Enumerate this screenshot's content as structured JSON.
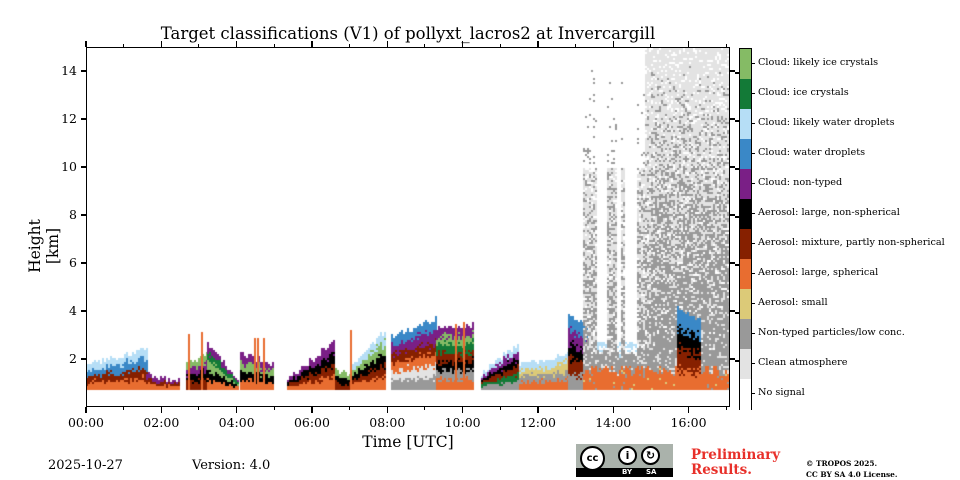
{
  "chart_data": {
    "type": "heatmap",
    "title": "Target classifications (V1) of pollyxt_lacros2 at Invercargill",
    "xlabel": "Time [UTC]",
    "ylabel": "Height [km]",
    "xlim_hours": [
      0,
      17.1
    ],
    "ylim_km": [
      0,
      15
    ],
    "xticks": [
      {
        "value": 0,
        "label": "00:00"
      },
      {
        "value": 2,
        "label": "02:00"
      },
      {
        "value": 4,
        "label": "04:00"
      },
      {
        "value": 6,
        "label": "06:00"
      },
      {
        "value": 8,
        "label": "08:00"
      },
      {
        "value": 10,
        "label": "10:00"
      },
      {
        "value": 12,
        "label": "12:00"
      },
      {
        "value": 14,
        "label": "14:00"
      },
      {
        "value": 16,
        "label": "16:00"
      }
    ],
    "xminor_hours": [
      1,
      3,
      5,
      7,
      9,
      11,
      13,
      15,
      17
    ],
    "yticks": [
      {
        "value": 2,
        "label": "2"
      },
      {
        "value": 4,
        "label": "4"
      },
      {
        "value": 6,
        "label": "6"
      },
      {
        "value": 8,
        "label": "8"
      },
      {
        "value": 10,
        "label": "10"
      },
      {
        "value": 12,
        "label": "12"
      },
      {
        "value": 14,
        "label": "14"
      }
    ],
    "colorbar": {
      "placement": "right",
      "classes": [
        {
          "id": 11,
          "label": "Cloud: likely ice crystals",
          "color": "#85bb65"
        },
        {
          "id": 10,
          "label": "Cloud: ice crystals",
          "color": "#137a37"
        },
        {
          "id": 9,
          "label": "Cloud: likely water droplets",
          "color": "#b6def6"
        },
        {
          "id": 8,
          "label": "Cloud: water droplets",
          "color": "#3a88c7"
        },
        {
          "id": 7,
          "label": "Cloud: non-typed",
          "color": "#7a1f86"
        },
        {
          "id": 6,
          "label": "Aerosol: large, non-spherical",
          "color": "#000000"
        },
        {
          "id": 5,
          "label": "Aerosol: mixture, partly non-spherical",
          "color": "#862000"
        },
        {
          "id": 4,
          "label": "Aerosol: large, spherical",
          "color": "#e86d30"
        },
        {
          "id": 3,
          "label": "Aerosol: small",
          "color": "#dcca78"
        },
        {
          "id": 2,
          "label": "Non-typed particles/low conc.",
          "color": "#999999"
        },
        {
          "id": 1,
          "label": "Clean atmosphere",
          "color": "#e3e3e3"
        },
        {
          "id": 0,
          "label": "No signal",
          "color": "#ffffff"
        }
      ]
    },
    "lowest_valid_height_km": 0.8,
    "segments": [
      {
        "t0": 0.0,
        "t1": 1.6,
        "top_km": [
          1.8,
          2.5
        ],
        "layers": [
          "orange",
          "brown",
          "blue",
          "lightblue"
        ],
        "note": "boundary layer with water cloud on top"
      },
      {
        "t0": 1.6,
        "t1": 2.5,
        "top_km": [
          1.4,
          1.1
        ],
        "layers": [
          "orange",
          "brown",
          "purple"
        ]
      },
      {
        "t0": 2.65,
        "t1": 3.2,
        "top_km": [
          1.8,
          2.3
        ],
        "layers": [
          "brown",
          "black",
          "purple",
          "lightgreen"
        ]
      },
      {
        "t0": 3.2,
        "t1": 4.0,
        "top_km": [
          2.7,
          1.2
        ],
        "layers": [
          "orange",
          "black",
          "lightgreen",
          "darkgreen",
          "purple"
        ]
      },
      {
        "t0": 4.1,
        "t1": 5.0,
        "top_km": [
          2.3,
          1.8
        ],
        "layers": [
          "orange",
          "black",
          "lightgreen",
          "purple"
        ]
      },
      {
        "t0": 5.35,
        "t1": 6.6,
        "top_km": [
          1.2,
          2.8
        ],
        "layers": [
          "orange",
          "brown",
          "black",
          "purple"
        ]
      },
      {
        "t0": 6.6,
        "t1": 7.0,
        "top_km": [
          1.6,
          1.4
        ],
        "layers": [
          "brown",
          "black",
          "lightgreen"
        ]
      },
      {
        "t0": 7.05,
        "t1": 7.9,
        "top_km": [
          1.8,
          3.2
        ],
        "layers": [
          "orange",
          "brown",
          "black",
          "lightgreen",
          "lightblue"
        ]
      },
      {
        "t0": 8.1,
        "t1": 9.3,
        "top_km": [
          3.0,
          3.7
        ],
        "layers": [
          "gray",
          "lightgray",
          "orange",
          "brown",
          "purple",
          "blue"
        ]
      },
      {
        "t0": 9.3,
        "t1": 10.3,
        "top_km": [
          3.3,
          3.5
        ],
        "layers": [
          "orange",
          "gray",
          "black",
          "brown",
          "darkgreen",
          "lightgreen",
          "purple"
        ]
      },
      {
        "t0": 10.5,
        "t1": 11.5,
        "top_km": [
          1.5,
          2.7
        ],
        "layers": [
          "gray",
          "darkgreen",
          "brown",
          "black",
          "purple",
          "lightblue"
        ]
      },
      {
        "t0": 11.5,
        "t1": 12.8,
        "top_km": [
          1.8,
          2.2
        ],
        "layers": [
          "orange",
          "gray",
          "sand",
          "lightblue"
        ]
      },
      {
        "t0": 12.8,
        "t1": 13.3,
        "top_km": [
          3.8,
          3.5
        ],
        "layers": [
          "gray",
          "brown",
          "black",
          "purple",
          "blue"
        ]
      },
      {
        "t0": 13.2,
        "t1": 17.1,
        "top_km": [
          15,
          15
        ],
        "layers": [
          "orange",
          "gray",
          "lightgray-speckle"
        ],
        "note": "high-altitude speckle of non-typed/clean to 15 km"
      },
      {
        "t0": 15.7,
        "t1": 16.3,
        "top_km": [
          4.2,
          3.6
        ],
        "layers": [
          "orange",
          "brown",
          "black",
          "blue"
        ],
        "note": "elevated aerosol plume 2.5–4.2 km"
      }
    ]
  },
  "footer": {
    "date": "2025-10-27",
    "version": "Version: 4.0",
    "license_badge": {
      "top_left": "cc",
      "by": "BY",
      "sa": "SA"
    },
    "preliminary_line1": "Preliminary",
    "preliminary_line2": "Results.",
    "copyright_line1": "© TROPOS 2025.",
    "copyright_line2": "CC BY SA 4.0 License."
  }
}
